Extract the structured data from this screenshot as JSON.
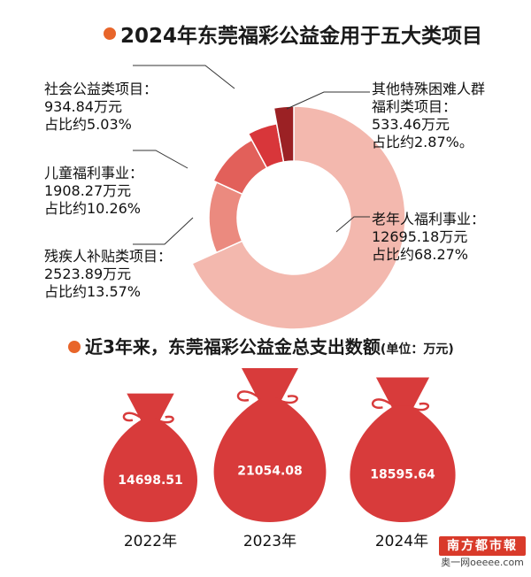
{
  "top_title": "2024年东莞福彩公益金用于五大类项目",
  "bottom_title": "近3年来，东莞福彩公益金总支出数额",
  "bottom_unit": "(单位：万元)",
  "colors": {
    "accent": "#e8652a",
    "elderly": "#f3b8ae",
    "disabled": "#eb8a7f",
    "children": "#e2605a",
    "social": "#d8363a",
    "other": "#9b2124",
    "bag": "#d83b3b"
  },
  "chart_data": [
    {
      "type": "pie",
      "title": "2024年东莞福彩公益金用于五大类项目",
      "unit": "万元",
      "slices": [
        {
          "name": "老年人福利事业",
          "value": 12695.18,
          "percent": 68.27
        },
        {
          "name": "残疾人补贴类项目",
          "value": 2523.89,
          "percent": 13.57
        },
        {
          "name": "儿童福利事业",
          "value": 1908.27,
          "percent": 10.26
        },
        {
          "name": "社会公益类项目",
          "value": 934.84,
          "percent": 5.03
        },
        {
          "name": "其他特殊困难人群福利类项目",
          "value": 533.46,
          "percent": 2.87
        }
      ]
    },
    {
      "type": "bar",
      "title": "近3年来，东莞福彩公益金总支出数额",
      "unit": "万元",
      "categories": [
        "2022年",
        "2023年",
        "2024年"
      ],
      "values": [
        14698.51,
        21054.08,
        18595.64
      ]
    }
  ],
  "labels": {
    "social": [
      "社会公益类项目：",
      "934.84万元",
      "占比约5.03%"
    ],
    "children": [
      "儿童福利事业：",
      "1908.27万元",
      "占比约10.26%"
    ],
    "disabled": [
      "残疾人补贴类项目：",
      "2523.89万元",
      "占比约13.57%"
    ],
    "other": [
      "其他特殊困难人群",
      "福利类项目：",
      "533.46万元",
      "占比约2.87%。"
    ],
    "elderly": [
      "老年人福利事业：",
      "12695.18万元",
      "占比约68.27%"
    ]
  },
  "bags": [
    {
      "year": "2022年",
      "value": "14698.51"
    },
    {
      "year": "2023年",
      "value": "21054.08"
    },
    {
      "year": "2024年",
      "value": "18595.64"
    }
  ],
  "logo": {
    "name": "南方都市報",
    "site": "奥一网oeeee.com"
  }
}
